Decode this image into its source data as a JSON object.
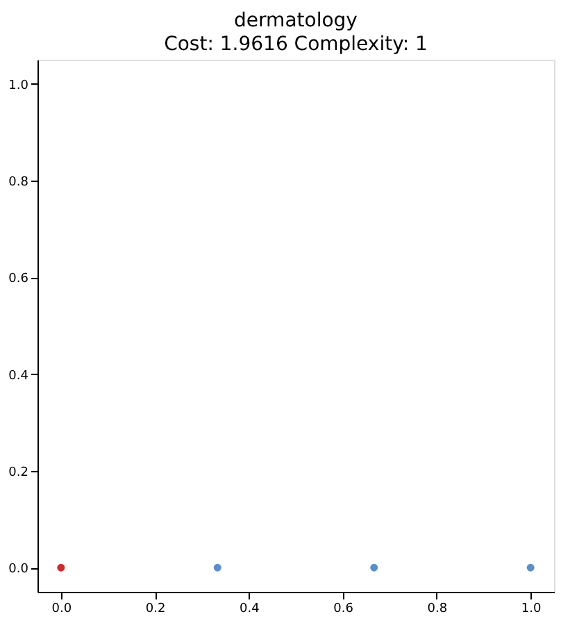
{
  "chart_data": {
    "type": "scatter",
    "title": "dermatology",
    "subtitle": "Cost: 1.9616 Complexity: 1",
    "series": [
      {
        "color": "#d62728",
        "x": [
          0
        ],
        "values": [
          0
        ]
      },
      {
        "color": "#5b8fc9",
        "x": [
          0.3333,
          0.6667,
          1.0
        ],
        "values": [
          0,
          0,
          0
        ]
      }
    ],
    "xlim": [
      -0.05,
      1.05
    ],
    "ylim": [
      -0.05,
      1.05
    ],
    "xticks": [
      {
        "value": 0,
        "label": "0.0"
      },
      {
        "value": 0.2,
        "label": "0.2"
      },
      {
        "value": 0.4,
        "label": "0.4"
      },
      {
        "value": 0.6,
        "label": "0.6"
      },
      {
        "value": 0.8,
        "label": "0.8"
      },
      {
        "value": 1,
        "label": "1.0"
      }
    ],
    "yticks": [
      {
        "value": 0,
        "label": "0.0"
      },
      {
        "value": 0.2,
        "label": "0.2"
      },
      {
        "value": 0.4,
        "label": "0.4"
      },
      {
        "value": 0.6,
        "label": "0.6"
      },
      {
        "value": 0.8,
        "label": "0.8"
      },
      {
        "value": 1,
        "label": "1.0"
      }
    ],
    "marker": "circle",
    "grid": false
  }
}
